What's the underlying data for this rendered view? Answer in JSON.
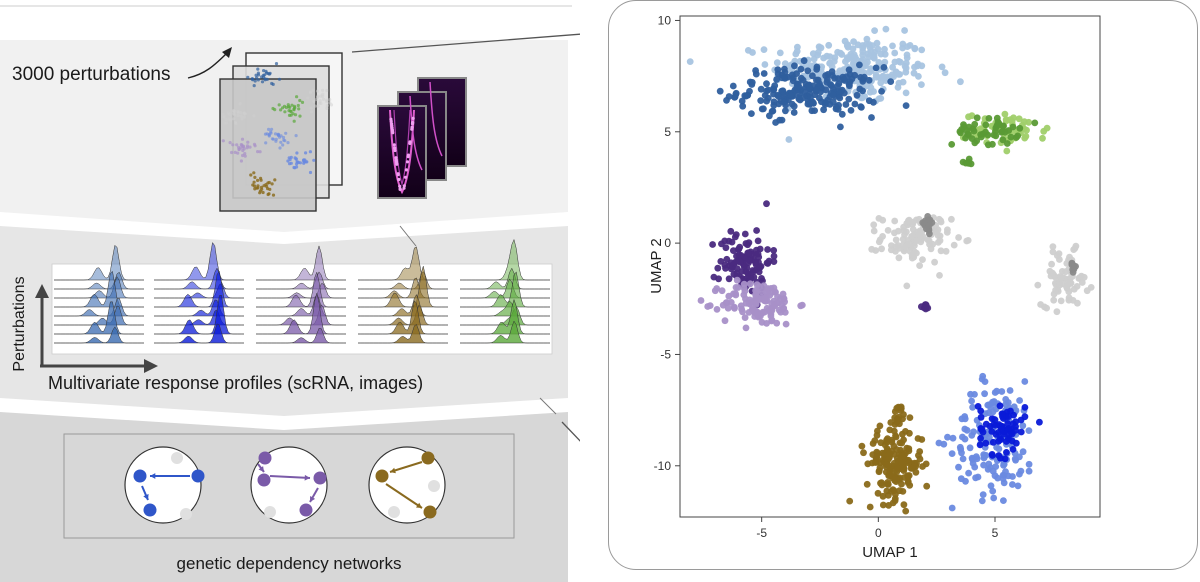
{
  "overview": {
    "perturbations_label": "3000 perturbations",
    "response_profiles_label": "Multivariate response profiles (scRNA, images)",
    "response_axis_label": "Perturbations",
    "networks_label": "genetic dependency networks"
  },
  "colors": {
    "blue": "#2f56c9",
    "purple": "#7a5aa8",
    "brown": "#8a6a1f",
    "green": "#5aa83a",
    "light_blue": "#a8c4e0",
    "dark_blue": "#2f5f9e",
    "light_green": "#a0cf6a",
    "dark_green": "#5a9a35",
    "gray": "#cfcfcf",
    "dark_gray": "#8a8a8a",
    "light_purple": "#a890c8",
    "dark_purple": "#4a2a80",
    "royal_blue": "#0a1ad8",
    "cornflower": "#6a8ae0",
    "gold_brown": "#8a6a1a"
  },
  "chart_data": {
    "type": "scatter",
    "xlabel": "UMAP 1",
    "ylabel": "UMAP 2",
    "xlim": [
      -8.5,
      9.5
    ],
    "ylim": [
      -12.3,
      10.2
    ],
    "xticks": [
      -5,
      0,
      5
    ],
    "yticks": [
      10,
      5,
      0,
      -5,
      -10
    ],
    "grid": false,
    "clusters": [
      {
        "color_key": "light_blue",
        "cx": -1.2,
        "cy": 7.8,
        "sx": 1.7,
        "sy": 0.75,
        "n": 260,
        "ellipse": true
      },
      {
        "color_key": "dark_blue",
        "cx": -3.0,
        "cy": 6.8,
        "sx": 1.5,
        "sy": 0.55,
        "n": 220,
        "ellipse": true
      },
      {
        "color_key": "light_green",
        "cx": 5.5,
        "cy": 5.1,
        "sx": 0.9,
        "sy": 0.35,
        "n": 60,
        "ellipse": true
      },
      {
        "color_key": "dark_green",
        "cx": 4.6,
        "cy": 5.0,
        "sx": 0.7,
        "sy": 0.3,
        "n": 50,
        "ellipse": true
      },
      {
        "color_key": "dark_green",
        "cx": 3.8,
        "cy": 3.6,
        "sx": 0.12,
        "sy": 0.12,
        "n": 6,
        "ellipse": true
      },
      {
        "color_key": "gray",
        "cx": 1.6,
        "cy": 0.2,
        "sx": 0.75,
        "sy": 0.55,
        "n": 110,
        "ellipse": true
      },
      {
        "color_key": "dark_gray",
        "cx": 2.1,
        "cy": 0.8,
        "sx": 0.18,
        "sy": 0.25,
        "n": 14,
        "ellipse": true
      },
      {
        "color_key": "gray",
        "cx": 8.0,
        "cy": -1.6,
        "sx": 0.5,
        "sy": 0.6,
        "n": 70,
        "ellipse": true
      },
      {
        "color_key": "dark_gray",
        "cx": 8.3,
        "cy": -1.2,
        "sx": 0.08,
        "sy": 0.22,
        "n": 8,
        "ellipse": true
      },
      {
        "color_key": "dark_purple",
        "cx": -5.7,
        "cy": -0.8,
        "sx": 0.55,
        "sy": 0.75,
        "n": 110,
        "ellipse": true
      },
      {
        "color_key": "light_purple",
        "cx": -5.1,
        "cy": -2.7,
        "sx": 0.8,
        "sy": 0.5,
        "n": 120,
        "ellipse": true
      },
      {
        "color_key": "dark_purple",
        "cx": 2.0,
        "cy": -2.9,
        "sx": 0.12,
        "sy": 0.1,
        "n": 8,
        "ellipse": true
      },
      {
        "color_key": "cornflower",
        "cx": 5.0,
        "cy": -8.8,
        "sx": 0.9,
        "sy": 1.3,
        "n": 150,
        "ellipse": true
      },
      {
        "color_key": "royal_blue",
        "cx": 5.3,
        "cy": -8.3,
        "sx": 0.5,
        "sy": 0.6,
        "n": 70,
        "ellipse": true
      },
      {
        "color_key": "gold_brown",
        "cx": 0.7,
        "cy": -9.9,
        "sx": 0.6,
        "sy": 0.8,
        "n": 170,
        "ellipse": true
      },
      {
        "color_key": "gold_brown",
        "cx": 0.9,
        "cy": -7.6,
        "sx": 0.12,
        "sy": 0.6,
        "n": 14,
        "ellipse": true
      }
    ]
  }
}
